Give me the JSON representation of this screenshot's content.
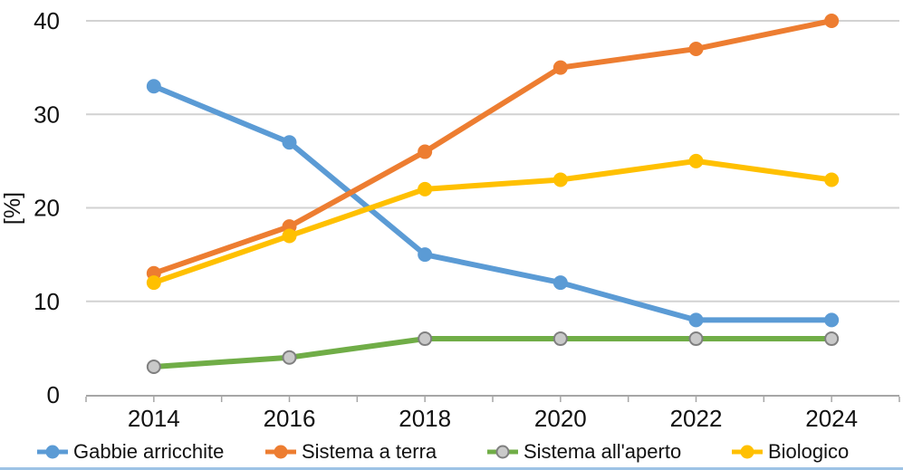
{
  "chart_data": {
    "type": "line",
    "title": "",
    "xlabel": "",
    "ylabel": "[%]",
    "ylim": [
      0,
      40
    ],
    "yticks": [
      0,
      10,
      20,
      30,
      40
    ],
    "categories": [
      "2014",
      "2016",
      "2018",
      "2020",
      "2022",
      "2024"
    ],
    "grid": "horizontal",
    "legend_position": "bottom",
    "series": [
      {
        "name": "Gabbie arricchite",
        "color": "#5B9BD5",
        "marker_fill": "#5B9BD5",
        "marker_stroke": "#5B9BD5",
        "values": [
          33,
          27,
          15,
          12,
          8,
          8
        ]
      },
      {
        "name": "Sistema a terra",
        "color": "#ED7D31",
        "marker_fill": "#ED7D31",
        "marker_stroke": "#ED7D31",
        "values": [
          13,
          18,
          26,
          35,
          37,
          40
        ]
      },
      {
        "name": "Sistema all'aperto",
        "color": "#70AD47",
        "marker_fill": "#C9C9C9",
        "marker_stroke": "#7F7F7F",
        "values": [
          3,
          4,
          6,
          6,
          6,
          6
        ]
      },
      {
        "name": "Biologico",
        "color": "#FFC000",
        "marker_fill": "#FFC000",
        "marker_stroke": "#FFC000",
        "values": [
          12,
          17,
          22,
          23,
          25,
          23
        ]
      }
    ],
    "colors": {
      "gridline": "#D2D2D2",
      "axis_line": "#A6A6A6",
      "text": "#111111",
      "bottom_rule": "#9DC3E6"
    }
  }
}
